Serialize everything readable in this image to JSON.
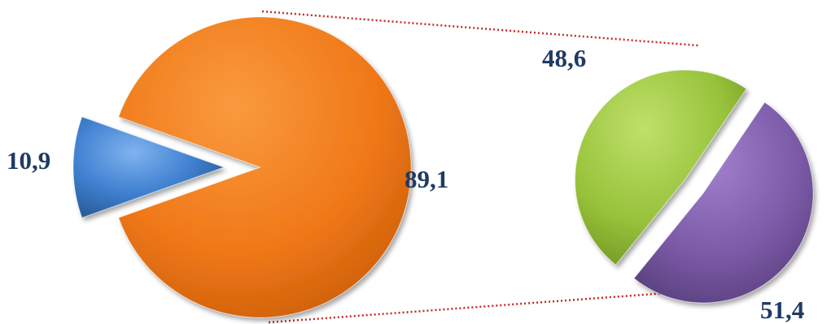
{
  "chart_data": [
    {
      "type": "pie",
      "style": "exploded-3d-pie",
      "categories": [
        "",
        ""
      ],
      "values": [
        10.9,
        89.1
      ],
      "labels": [
        "10,9",
        "89,1"
      ],
      "colors": [
        "#3e7fcf",
        "#f07818"
      ]
    },
    {
      "type": "pie",
      "style": "exploded-3d-pie",
      "categories": [
        "",
        ""
      ],
      "values": [
        48.6,
        51.4
      ],
      "labels": [
        "48,6",
        "51,4"
      ],
      "colors": [
        "#97c23a",
        "#7a59a5"
      ]
    }
  ],
  "connector": {
    "style": "dotted",
    "color": "#c62828"
  }
}
